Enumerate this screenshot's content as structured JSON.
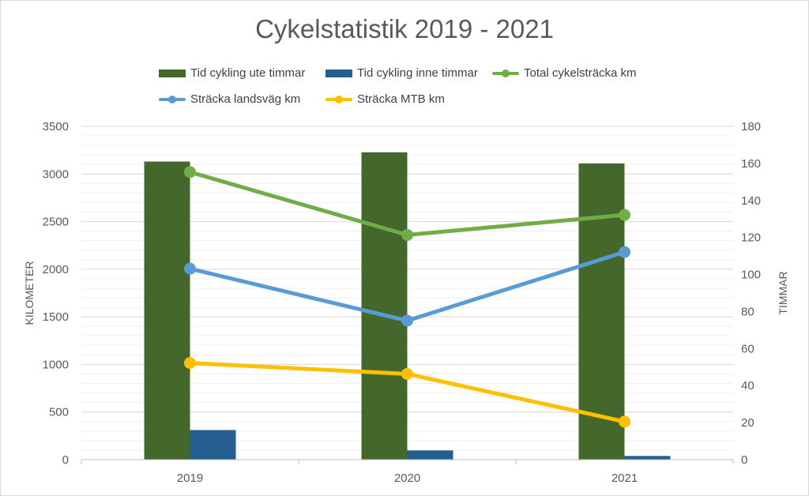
{
  "chart_data": {
    "type": "bar+line",
    "title": "Cykelstatistik 2019 - 2021",
    "categories": [
      "2019",
      "2020",
      "2021"
    ],
    "y_left": {
      "label": "KILOMETER",
      "min": 0,
      "max": 3500,
      "step": 500,
      "ticks": [
        "0",
        "500",
        "1000",
        "1500",
        "2000",
        "2500",
        "3000",
        "3500"
      ]
    },
    "y_right": {
      "label": "TIMMAR",
      "min": 0,
      "max": 180,
      "step": 20,
      "ticks": [
        "0",
        "20",
        "40",
        "60",
        "80",
        "100",
        "120",
        "140",
        "160",
        "180"
      ]
    },
    "grid": true,
    "legend_position": "top",
    "series": [
      {
        "name": "Tid cykling ute timmar",
        "kind": "bar",
        "axis": "right",
        "color": "#44682c",
        "values": [
          161,
          166,
          160
        ]
      },
      {
        "name": "Tid cykling inne timmar",
        "kind": "bar",
        "axis": "right",
        "color": "#255e91",
        "values": [
          16,
          5,
          2
        ]
      },
      {
        "name": "Total cykelsträcka km",
        "kind": "line",
        "axis": "left",
        "color": "#70ad47",
        "values": [
          3020,
          2360,
          2570
        ]
      },
      {
        "name": "Sträcka landsväg km",
        "kind": "line",
        "axis": "left",
        "color": "#5b9bd5",
        "values": [
          2005,
          1460,
          2180
        ]
      },
      {
        "name": "Sträcka MTB km",
        "kind": "line",
        "axis": "left",
        "color": "#ffc000",
        "values": [
          1015,
          900,
          400
        ]
      }
    ]
  }
}
